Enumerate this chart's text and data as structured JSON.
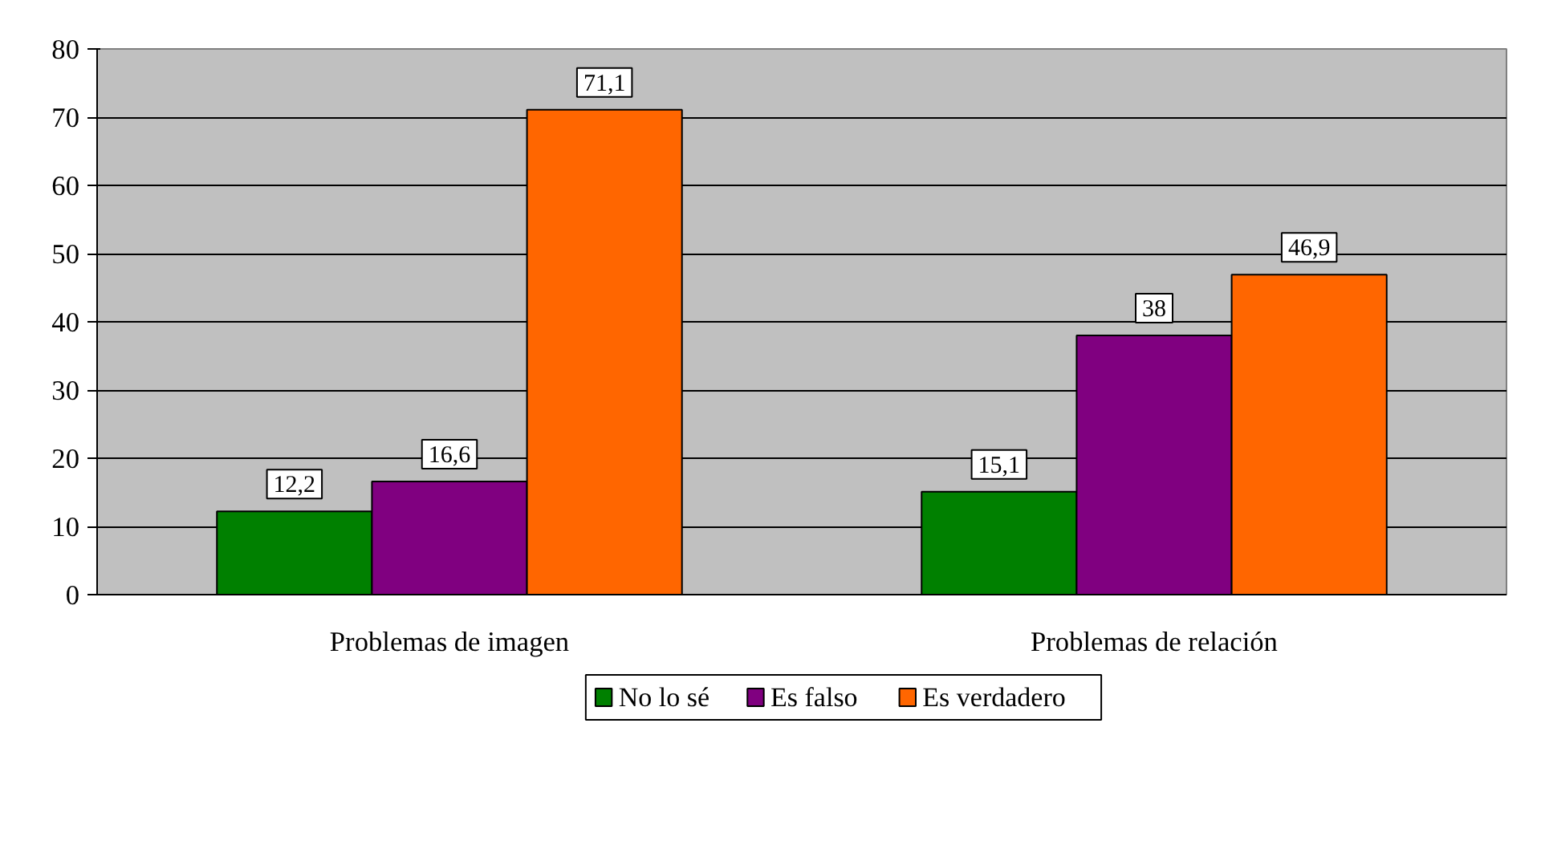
{
  "chart_data": {
    "type": "bar",
    "categories": [
      "Problemas de imagen",
      "Problemas de relación"
    ],
    "series": [
      {
        "name": "No lo sé",
        "color": "#008000",
        "values": [
          12.2,
          15.1
        ],
        "value_labels": [
          "12,2",
          "15,1"
        ]
      },
      {
        "name": "Es falso",
        "color": "#800080",
        "values": [
          16.6,
          38
        ],
        "value_labels": [
          "16,6",
          "38"
        ]
      },
      {
        "name": "Es verdadero",
        "color": "#ff6600",
        "values": [
          71.1,
          46.9
        ],
        "value_labels": [
          "71,1",
          "46,9"
        ]
      }
    ],
    "ylim": [
      0,
      80
    ],
    "yticks": [
      0,
      10,
      20,
      30,
      40,
      50,
      60,
      70,
      80
    ],
    "grid": "y",
    "legend": "bottom"
  }
}
